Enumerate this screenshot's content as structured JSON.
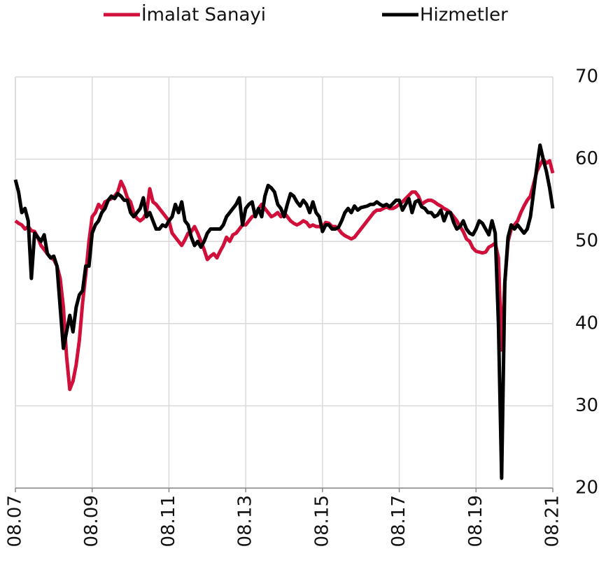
{
  "chart_data": {
    "type": "line",
    "categories": [
      "08.07",
      null,
      null,
      null,
      null,
      null,
      null,
      null,
      null,
      null,
      null,
      null,
      null,
      null,
      null,
      null,
      null,
      null,
      null,
      null,
      null,
      null,
      null,
      null,
      "08.09",
      null,
      null,
      null,
      null,
      null,
      null,
      null,
      null,
      null,
      null,
      null,
      null,
      null,
      null,
      null,
      null,
      null,
      null,
      null,
      null,
      null,
      null,
      null,
      "08.11",
      null,
      null,
      null,
      null,
      null,
      null,
      null,
      null,
      null,
      null,
      null,
      null,
      null,
      null,
      null,
      null,
      null,
      null,
      null,
      null,
      null,
      null,
      null,
      "08.13",
      null,
      null,
      null,
      null,
      null,
      null,
      null,
      null,
      null,
      null,
      null,
      null,
      null,
      null,
      null,
      null,
      null,
      null,
      null,
      null,
      null,
      null,
      null,
      "08.15",
      null,
      null,
      null,
      null,
      null,
      null,
      null,
      null,
      null,
      null,
      null,
      null,
      null,
      null,
      null,
      null,
      null,
      null,
      null,
      null,
      null,
      null,
      null,
      "08.17",
      null,
      null,
      null,
      null,
      null,
      null,
      null,
      null,
      null,
      null,
      null,
      null,
      null,
      null,
      null,
      null,
      null,
      null,
      null,
      null,
      null,
      null,
      null,
      "08.19",
      null,
      null,
      null,
      null,
      null,
      null,
      null,
      null,
      null,
      null,
      null,
      null,
      null,
      null,
      null,
      null,
      null,
      null,
      null,
      null,
      null,
      null,
      null,
      "08.21"
    ],
    "series": [
      {
        "name": "İmalat Sanayi",
        "color": "#d0103a",
        "values": [
          52.5,
          52.2,
          52,
          51.5,
          51.8,
          51.3,
          51.2,
          50.5,
          49.5,
          49,
          48.5,
          48,
          47.8,
          47,
          45.5,
          42,
          36,
          32,
          33,
          35,
          38,
          42.5,
          46,
          50,
          53,
          53.5,
          54.5,
          54,
          54.8,
          55,
          55.2,
          55.5,
          56,
          57.3,
          56.5,
          55.3,
          54.8,
          53.5,
          52.8,
          52.5,
          52.8,
          53.5,
          56.4,
          54.8,
          54.5,
          54,
          53.5,
          53,
          52.5,
          51,
          50.5,
          50,
          49.5,
          50.2,
          51,
          51.2,
          51.8,
          51,
          50,
          49,
          47.8,
          48.2,
          48.5,
          48,
          48.8,
          49.5,
          50.5,
          50,
          50.8,
          51,
          51.5,
          52,
          52,
          52.5,
          53,
          53.2,
          54,
          54.5,
          54,
          53.5,
          53,
          53.2,
          53.5,
          53,
          53.5,
          53,
          52.5,
          52.2,
          52,
          52.2,
          52.5,
          52.3,
          51.8,
          52,
          51.8,
          51.8,
          51.7,
          52.3,
          52.2,
          51.8,
          51.8,
          51.5,
          51,
          50.7,
          50.5,
          50.3,
          50.5,
          51,
          51.5,
          52,
          52.5,
          53,
          53.5,
          53.8,
          53.8,
          54,
          54.2,
          54,
          54,
          54.2,
          54.5,
          54.8,
          55.2,
          55.6,
          56,
          56,
          55.5,
          54.5,
          54.8,
          55,
          55,
          54.8,
          54.5,
          54.3,
          54,
          53.8,
          53.5,
          53,
          52.5,
          51.8,
          51.2,
          50.3,
          50,
          49.2,
          48.8,
          48.7,
          48.6,
          48.7,
          49.3,
          49.5,
          49.8,
          48,
          36.8,
          45,
          50,
          51.5,
          52,
          52.5,
          53.5,
          54.3,
          55,
          55.5,
          57,
          58.5,
          59.3,
          60,
          59.5,
          59.8,
          58.3
        ]
      },
      {
        "name": "Hizmetler",
        "color": "#000000",
        "values": [
          57.5,
          56,
          53.5,
          54,
          52.5,
          45.5,
          51,
          50.5,
          50,
          50.8,
          48.5,
          48,
          48.2,
          47,
          42,
          37,
          39,
          41,
          39,
          42,
          43.5,
          44,
          47,
          47,
          51,
          52,
          52.5,
          53.5,
          54,
          55,
          55.5,
          55.2,
          55.8,
          55.5,
          55,
          55,
          53.5,
          53,
          53.5,
          54,
          55.3,
          53,
          53.5,
          52.5,
          51.5,
          51.5,
          52,
          51.8,
          52.5,
          53,
          54.5,
          53.5,
          54.8,
          52.5,
          52,
          50.5,
          49.5,
          50,
          49.3,
          50,
          51,
          51.5,
          51.5,
          51.5,
          51.5,
          52,
          53,
          53.5,
          54,
          54.5,
          55.3,
          52,
          54,
          54.5,
          54.8,
          53,
          54,
          53,
          55.5,
          56.8,
          56.5,
          56,
          54.5,
          54,
          53,
          54.5,
          55.8,
          55.5,
          54.8,
          54.3,
          55,
          54.5,
          53.5,
          54.8,
          53.5,
          53,
          51.2,
          52,
          52,
          51.5,
          51.5,
          51.7,
          52.5,
          53.5,
          54,
          53.5,
          54.3,
          53.8,
          54.1,
          54.2,
          54.3,
          54.5,
          54.5,
          54.8,
          54.5,
          54.3,
          54.5,
          54.2,
          54.6,
          55,
          55,
          53.8,
          54.5,
          55.2,
          53.5,
          54.8,
          55,
          54.2,
          54,
          53.5,
          53.5,
          53,
          53.2,
          53.8,
          52.5,
          53.5,
          53.5,
          52.3,
          51.5,
          51.8,
          52.5,
          51.5,
          51,
          50.8,
          51.5,
          52.5,
          52.2,
          51.5,
          50.8,
          52.5,
          51,
          40,
          21.2,
          45,
          50.5,
          52,
          51.5,
          52,
          51.5,
          51,
          51.5,
          53,
          56,
          59,
          61.7,
          60,
          58.5,
          56.5,
          54
        ]
      }
    ],
    "ylim": [
      20,
      70
    ],
    "yticks": [
      20,
      30,
      40,
      50,
      60,
      70
    ],
    "grid": true
  }
}
